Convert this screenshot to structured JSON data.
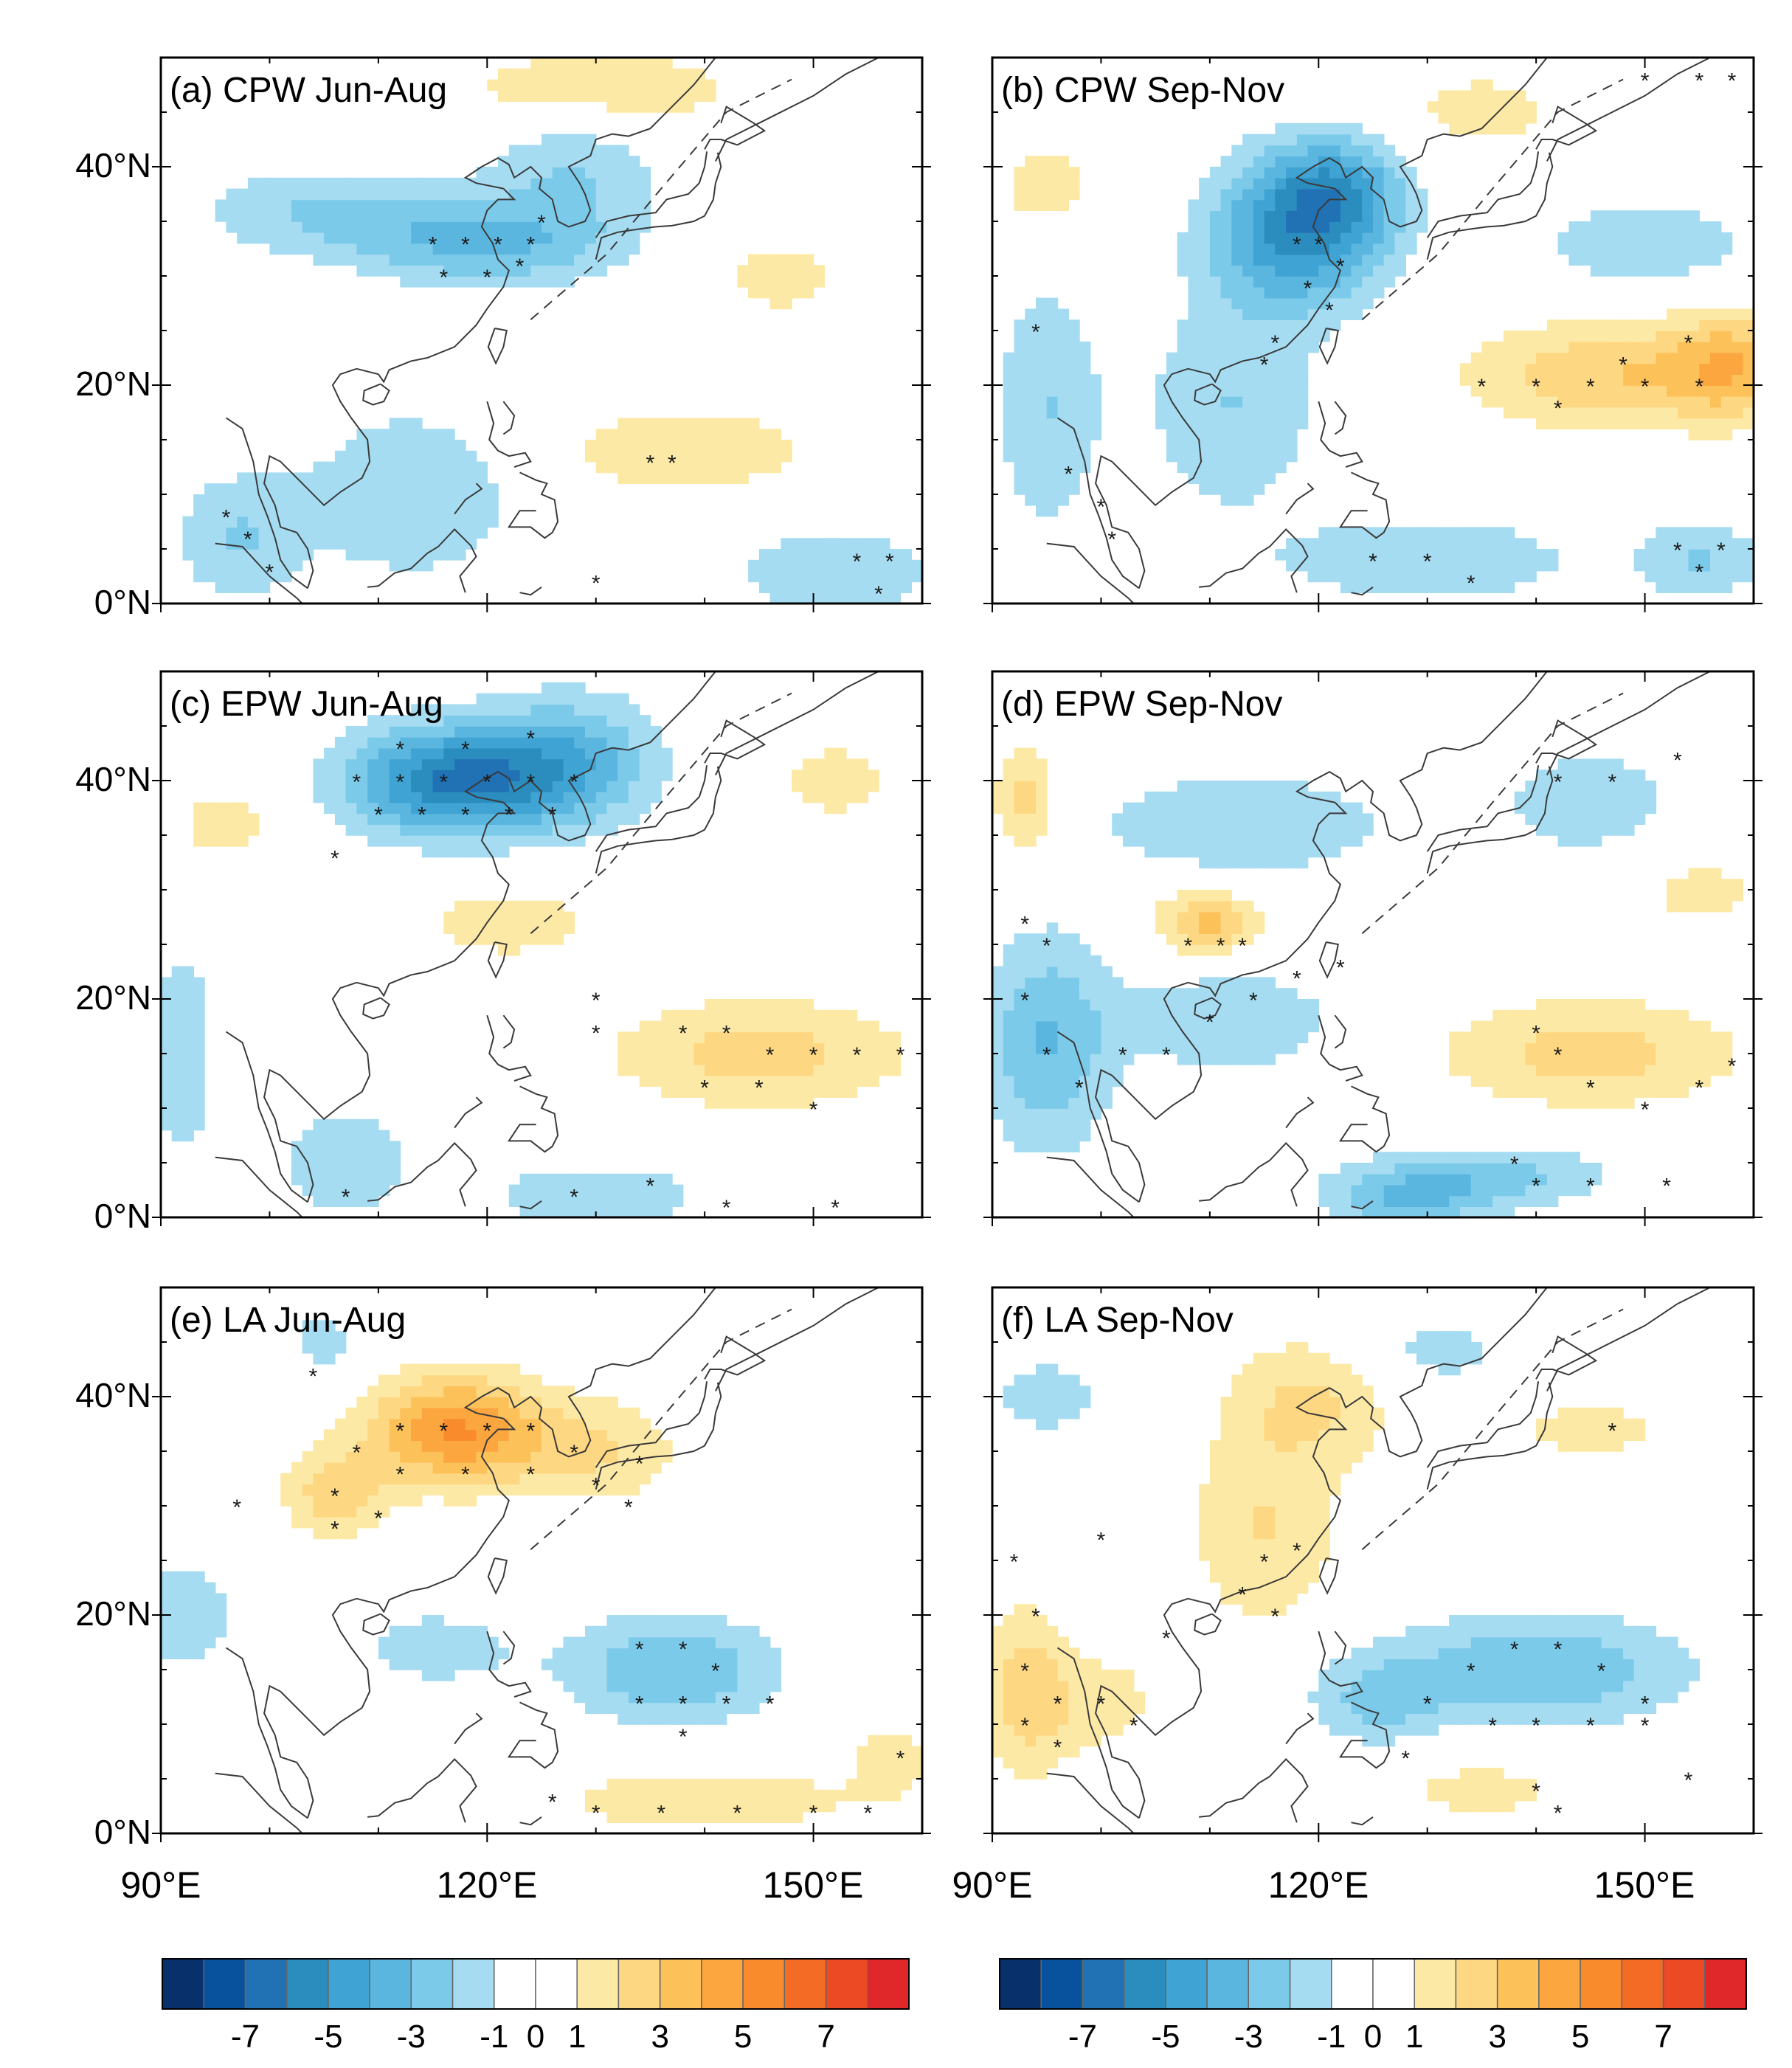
{
  "chart_data": {
    "type": "heatmap",
    "description_free": true,
    "x_ticks": [
      {
        "value": 90,
        "label": "90°E"
      },
      {
        "value": 120,
        "label": "120°E"
      },
      {
        "value": 150,
        "label": "150°E"
      }
    ],
    "y_ticks": [
      {
        "value": 0,
        "label": "0°N"
      },
      {
        "value": 20,
        "label": "20°N"
      },
      {
        "value": 40,
        "label": "40°N"
      }
    ],
    "xlim": [
      90,
      160
    ],
    "ylim": [
      0,
      50
    ],
    "colorbar": {
      "colors": [
        "#08306b",
        "#08519c",
        "#2171b5",
        "#2b8cbe",
        "#3fa3d3",
        "#5bb6df",
        "#7ccaea",
        "#a6dcf1",
        "#ffffff",
        "#ffffff",
        "#fde9a6",
        "#fed782",
        "#fdc15a",
        "#fca63f",
        "#f98b2d",
        "#f46b26",
        "#ec4a24",
        "#e0282a"
      ],
      "tick_values": [
        -7,
        -5,
        -3,
        -1,
        0,
        1,
        3,
        5,
        7
      ],
      "tick_labels": [
        "-7",
        "-5",
        "-3",
        "-1",
        "0",
        "1",
        "3",
        "5",
        "7"
      ]
    },
    "panels": [
      {
        "title": "(a) CPW Jun-Aug",
        "anomalies": [
          {
            "lon": 120,
            "lat": 33,
            "value": -3,
            "sx": 12,
            "sy": 4
          },
          {
            "lon": 105,
            "lat": 36,
            "value": -2,
            "sx": 12,
            "sy": 4
          },
          {
            "lon": 128,
            "lat": 40,
            "value": -2,
            "sx": 8,
            "sy": 6
          },
          {
            "lon": 113,
            "lat": 10,
            "value": -2,
            "sx": 10,
            "sy": 8
          },
          {
            "lon": 97,
            "lat": 6,
            "value": -2,
            "sx": 6,
            "sy": 6
          },
          {
            "lon": 152,
            "lat": 3,
            "value": -2,
            "sx": 10,
            "sy": 4
          },
          {
            "lon": 138,
            "lat": 14,
            "value": 2,
            "sx": 12,
            "sy": 4
          },
          {
            "lon": 130,
            "lat": 47,
            "value": 2,
            "sx": 14,
            "sy": 4
          },
          {
            "lon": 147,
            "lat": 30,
            "value": 1.5,
            "sx": 6,
            "sy": 4
          }
        ],
        "stipple": [
          [
            115,
            33
          ],
          [
            118,
            33
          ],
          [
            121,
            33
          ],
          [
            124,
            33
          ],
          [
            116,
            30
          ],
          [
            120,
            30
          ],
          [
            123,
            31
          ],
          [
            125,
            35
          ],
          [
            96,
            8
          ],
          [
            98,
            6
          ],
          [
            100,
            3
          ],
          [
            135,
            13
          ],
          [
            137,
            13
          ],
          [
            154,
            4
          ],
          [
            157,
            4
          ],
          [
            156,
            1
          ],
          [
            130,
            2
          ]
        ]
      },
      {
        "title": "(b) CPW Sep-Nov",
        "anomalies": [
          {
            "lon": 118,
            "lat": 34,
            "value": -5,
            "sx": 8,
            "sy": 7
          },
          {
            "lon": 122,
            "lat": 38,
            "value": -3,
            "sx": 6,
            "sy": 5
          },
          {
            "lon": 112,
            "lat": 18,
            "value": -2,
            "sx": 8,
            "sy": 10
          },
          {
            "lon": 95,
            "lat": 18,
            "value": -2,
            "sx": 5,
            "sy": 12
          },
          {
            "lon": 130,
            "lat": 4,
            "value": -2,
            "sx": 14,
            "sy": 4
          },
          {
            "lon": 155,
            "lat": 4,
            "value": -2,
            "sx": 6,
            "sy": 4
          },
          {
            "lon": 150,
            "lat": 33,
            "value": -2,
            "sx": 10,
            "sy": 4
          },
          {
            "lon": 148,
            "lat": 21,
            "value": 3,
            "sx": 14,
            "sy": 5
          },
          {
            "lon": 158,
            "lat": 22,
            "value": 2.5,
            "sx": 5,
            "sy": 5
          },
          {
            "lon": 95,
            "lat": 38,
            "value": 1.5,
            "sx": 6,
            "sy": 5
          },
          {
            "lon": 135,
            "lat": 45,
            "value": 1.5,
            "sx": 8,
            "sy": 4
          }
        ],
        "stipple": [
          [
            118,
            33
          ],
          [
            120,
            33
          ],
          [
            122,
            31
          ],
          [
            119,
            29
          ],
          [
            121,
            27
          ],
          [
            116,
            24
          ],
          [
            115,
            22
          ],
          [
            94,
            25
          ],
          [
            135,
            20
          ],
          [
            140,
            20
          ],
          [
            145,
            20
          ],
          [
            150,
            20
          ],
          [
            155,
            20
          ],
          [
            142,
            18
          ],
          [
            148,
            22
          ],
          [
            154,
            24
          ],
          [
            153,
            5
          ],
          [
            157,
            5
          ],
          [
            155,
            3
          ],
          [
            125,
            4
          ],
          [
            130,
            4
          ],
          [
            134,
            2
          ],
          [
            97,
            12
          ],
          [
            100,
            9
          ],
          [
            101,
            6
          ],
          [
            150,
            48
          ],
          [
            155,
            48
          ],
          [
            158,
            48
          ]
        ]
      },
      {
        "title": "(c) EPW Jun-Aug",
        "anomalies": [
          {
            "lon": 117,
            "lat": 40,
            "value": -6,
            "sx": 10,
            "sy": 5
          },
          {
            "lon": 128,
            "lat": 42,
            "value": -3,
            "sx": 8,
            "sy": 6
          },
          {
            "lon": 92,
            "lat": 15,
            "value": -2,
            "sx": 3,
            "sy": 10
          },
          {
            "lon": 130,
            "lat": 2,
            "value": -2,
            "sx": 10,
            "sy": 3
          },
          {
            "lon": 107,
            "lat": 5,
            "value": -2,
            "sx": 6,
            "sy": 5
          },
          {
            "lon": 145,
            "lat": 15,
            "value": 2.5,
            "sx": 14,
            "sy": 5
          },
          {
            "lon": 122,
            "lat": 27,
            "value": 1.5,
            "sx": 10,
            "sy": 4
          },
          {
            "lon": 96,
            "lat": 36,
            "value": 2,
            "sx": 4,
            "sy": 3
          },
          {
            "lon": 152,
            "lat": 40,
            "value": 1.5,
            "sx": 6,
            "sy": 4
          }
        ],
        "stipple": [
          [
            108,
            40
          ],
          [
            112,
            40
          ],
          [
            116,
            40
          ],
          [
            120,
            40
          ],
          [
            124,
            40
          ],
          [
            128,
            40
          ],
          [
            110,
            37
          ],
          [
            114,
            37
          ],
          [
            118,
            37
          ],
          [
            122,
            37
          ],
          [
            126,
            37
          ],
          [
            112,
            43
          ],
          [
            118,
            43
          ],
          [
            124,
            44
          ],
          [
            106,
            33
          ],
          [
            130,
            20
          ],
          [
            130,
            17
          ],
          [
            138,
            17
          ],
          [
            142,
            17
          ],
          [
            146,
            15
          ],
          [
            150,
            15
          ],
          [
            154,
            15
          ],
          [
            158,
            15
          ],
          [
            140,
            12
          ],
          [
            145,
            12
          ],
          [
            150,
            10
          ],
          [
            135,
            3
          ],
          [
            128,
            2
          ],
          [
            107,
            2
          ],
          [
            142,
            1
          ],
          [
            152,
            1
          ]
        ]
      },
      {
        "title": "(d) EPW Sep-Nov",
        "anomalies": [
          {
            "lon": 110,
            "lat": 27,
            "value": 3.5,
            "sx": 5,
            "sy": 3
          },
          {
            "lon": 95,
            "lat": 16,
            "value": -3,
            "sx": 6,
            "sy": 10
          },
          {
            "lon": 112,
            "lat": 18,
            "value": -2,
            "sx": 10,
            "sy": 5
          },
          {
            "lon": 128,
            "lat": 2,
            "value": -3,
            "sx": 8,
            "sy": 3
          },
          {
            "lon": 138,
            "lat": 4,
            "value": -2,
            "sx": 10,
            "sy": 3
          },
          {
            "lon": 113,
            "lat": 36,
            "value": -2,
            "sx": 14,
            "sy": 5
          },
          {
            "lon": 145,
            "lat": 38,
            "value": -1.5,
            "sx": 10,
            "sy": 6
          },
          {
            "lon": 145,
            "lat": 15,
            "value": 2.5,
            "sx": 14,
            "sy": 5
          },
          {
            "lon": 93,
            "lat": 38,
            "value": 2.5,
            "sx": 3,
            "sy": 5
          },
          {
            "lon": 155,
            "lat": 30,
            "value": 1.5,
            "sx": 6,
            "sy": 4
          }
        ],
        "stipple": [
          [
            108,
            25
          ],
          [
            111,
            25
          ],
          [
            113,
            25
          ],
          [
            93,
            27
          ],
          [
            95,
            25
          ],
          [
            93,
            20
          ],
          [
            95,
            15
          ],
          [
            98,
            12
          ],
          [
            102,
            15
          ],
          [
            106,
            15
          ],
          [
            110,
            18
          ],
          [
            114,
            20
          ],
          [
            118,
            22
          ],
          [
            122,
            23
          ],
          [
            140,
            17
          ],
          [
            142,
            15
          ],
          [
            145,
            12
          ],
          [
            150,
            10
          ],
          [
            155,
            12
          ],
          [
            158,
            14
          ],
          [
            138,
            5
          ],
          [
            140,
            3
          ],
          [
            145,
            3
          ],
          [
            152,
            3
          ],
          [
            142,
            40
          ],
          [
            147,
            40
          ],
          [
            153,
            42
          ]
        ]
      },
      {
        "title": "(e) LA Jun-Aug",
        "anomalies": [
          {
            "lon": 117,
            "lat": 37,
            "value": 5,
            "sx": 8,
            "sy": 5
          },
          {
            "lon": 130,
            "lat": 35,
            "value": 2,
            "sx": 8,
            "sy": 5
          },
          {
            "lon": 106,
            "lat": 31,
            "value": 2.5,
            "sx": 5,
            "sy": 4
          },
          {
            "lon": 92,
            "lat": 20,
            "value": -2,
            "sx": 5,
            "sy": 5
          },
          {
            "lon": 137,
            "lat": 15,
            "value": -3,
            "sx": 10,
            "sy": 5
          },
          {
            "lon": 115,
            "lat": 17,
            "value": -1.5,
            "sx": 8,
            "sy": 4
          },
          {
            "lon": 140,
            "lat": 3,
            "value": 2,
            "sx": 14,
            "sy": 3
          },
          {
            "lon": 157,
            "lat": 7,
            "value": 1.5,
            "sx": 4,
            "sy": 4
          },
          {
            "lon": 112,
            "lat": 5,
            "value": 1,
            "sx": 6,
            "sy": 3
          },
          {
            "lon": 105,
            "lat": 45,
            "value": -1.5,
            "sx": 4,
            "sy": 3
          }
        ],
        "stipple": [
          [
            108,
            35
          ],
          [
            112,
            37
          ],
          [
            116,
            37
          ],
          [
            120,
            37
          ],
          [
            124,
            37
          ],
          [
            128,
            35
          ],
          [
            112,
            33
          ],
          [
            118,
            33
          ],
          [
            124,
            33
          ],
          [
            130,
            32
          ],
          [
            134,
            34
          ],
          [
            106,
            31
          ],
          [
            106,
            28
          ],
          [
            110,
            29
          ],
          [
            133,
            30
          ],
          [
            97,
            30
          ],
          [
            104,
            42
          ],
          [
            134,
            17
          ],
          [
            138,
            17
          ],
          [
            141,
            15
          ],
          [
            134,
            12
          ],
          [
            138,
            12
          ],
          [
            142,
            12
          ],
          [
            146,
            12
          ],
          [
            138,
            9
          ],
          [
            126,
            3
          ],
          [
            130,
            2
          ],
          [
            136,
            2
          ],
          [
            143,
            2
          ],
          [
            150,
            2
          ],
          [
            155,
            2
          ],
          [
            158,
            7
          ]
        ]
      },
      {
        "title": "(f) LA Sep-Nov",
        "anomalies": [
          {
            "lon": 93,
            "lat": 13,
            "value": 2.5,
            "sx": 4,
            "sy": 8
          },
          {
            "lon": 100,
            "lat": 12,
            "value": 1.5,
            "sx": 6,
            "sy": 5
          },
          {
            "lon": 115,
            "lat": 28,
            "value": 2,
            "sx": 7,
            "sy": 10
          },
          {
            "lon": 120,
            "lat": 40,
            "value": 2,
            "sx": 8,
            "sy": 6
          },
          {
            "lon": 140,
            "lat": 15,
            "value": -3,
            "sx": 14,
            "sy": 5
          },
          {
            "lon": 125,
            "lat": 12,
            "value": -2,
            "sx": 6,
            "sy": 4
          },
          {
            "lon": 145,
            "lat": 37,
            "value": 1.5,
            "sx": 8,
            "sy": 3
          },
          {
            "lon": 130,
            "lat": 44,
            "value": -1.5,
            "sx": 8,
            "sy": 4
          },
          {
            "lon": 95,
            "lat": 40,
            "value": -1.5,
            "sx": 6,
            "sy": 4
          },
          {
            "lon": 135,
            "lat": 4,
            "value": 1.5,
            "sx": 8,
            "sy": 3
          }
        ],
        "stipple": [
          [
            92,
            25
          ],
          [
            94,
            20
          ],
          [
            93,
            15
          ],
          [
            96,
            12
          ],
          [
            93,
            10
          ],
          [
            96,
            8
          ],
          [
            100,
            12
          ],
          [
            103,
            10
          ],
          [
            113,
            22
          ],
          [
            115,
            25
          ],
          [
            118,
            26
          ],
          [
            116,
            20
          ],
          [
            100,
            27
          ],
          [
            106,
            18
          ],
          [
            134,
            15
          ],
          [
            138,
            17
          ],
          [
            142,
            17
          ],
          [
            146,
            15
          ],
          [
            150,
            12
          ],
          [
            130,
            12
          ],
          [
            136,
            10
          ],
          [
            140,
            10
          ],
          [
            145,
            10
          ],
          [
            150,
            10
          ],
          [
            128,
            7
          ],
          [
            140,
            4
          ],
          [
            142,
            2
          ],
          [
            147,
            37
          ],
          [
            154,
            5
          ]
        ]
      }
    ]
  }
}
